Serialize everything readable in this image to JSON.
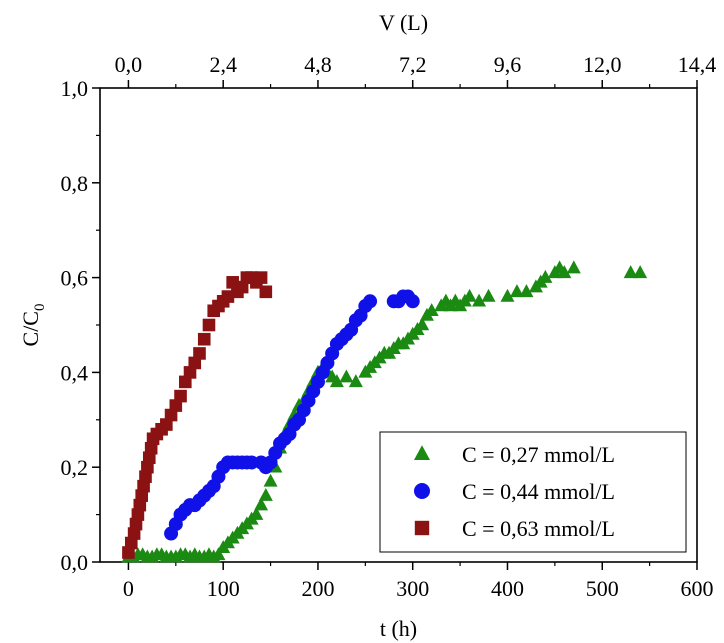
{
  "chart_data": {
    "type": "scatter",
    "xlabel": "t (h)",
    "ylabel_main": "C/C",
    "ylabel_sub": "0",
    "top_xlabel": "V (L)",
    "xlim": [
      -30,
      600
    ],
    "ylim": [
      0,
      1.0
    ],
    "x_ticks": [
      "0",
      "100",
      "200",
      "300",
      "400",
      "500",
      "600"
    ],
    "y_ticks": [
      "0,0",
      "0,2",
      "0,4",
      "0,6",
      "0,8",
      "1,0"
    ],
    "top_ticks": [
      "0,0",
      "2,4",
      "4,8",
      "7,2",
      "9,6",
      "12,0",
      "14,4"
    ],
    "legend_position": "bottom-right",
    "series": [
      {
        "name": "C = 0,27 mmol/L",
        "marker": "triangle",
        "color": "#1a8a12",
        "points": [
          [
            0,
            0.01
          ],
          [
            5,
            0.01
          ],
          [
            10,
            0.015
          ],
          [
            15,
            0.015
          ],
          [
            20,
            0.01
          ],
          [
            25,
            0.01
          ],
          [
            30,
            0.015
          ],
          [
            35,
            0.015
          ],
          [
            40,
            0.01
          ],
          [
            45,
            0.01
          ],
          [
            50,
            0.01
          ],
          [
            55,
            0.015
          ],
          [
            60,
            0.015
          ],
          [
            65,
            0.01
          ],
          [
            70,
            0.015
          ],
          [
            75,
            0.01
          ],
          [
            80,
            0.01
          ],
          [
            85,
            0.015
          ],
          [
            90,
            0.01
          ],
          [
            95,
            0.015
          ],
          [
            100,
            0.03
          ],
          [
            105,
            0.04
          ],
          [
            110,
            0.05
          ],
          [
            115,
            0.06
          ],
          [
            120,
            0.07
          ],
          [
            125,
            0.08
          ],
          [
            130,
            0.09
          ],
          [
            135,
            0.1
          ],
          [
            140,
            0.12
          ],
          [
            145,
            0.14
          ],
          [
            150,
            0.17
          ],
          [
            155,
            0.2
          ],
          [
            160,
            0.24
          ],
          [
            165,
            0.27
          ],
          [
            170,
            0.29
          ],
          [
            175,
            0.31
          ],
          [
            180,
            0.33
          ],
          [
            185,
            0.34
          ],
          [
            190,
            0.36
          ],
          [
            195,
            0.38
          ],
          [
            200,
            0.4
          ],
          [
            205,
            0.41
          ],
          [
            210,
            0.4
          ],
          [
            215,
            0.39
          ],
          [
            220,
            0.38
          ],
          [
            230,
            0.39
          ],
          [
            240,
            0.38
          ],
          [
            250,
            0.4
          ],
          [
            255,
            0.41
          ],
          [
            260,
            0.42
          ],
          [
            265,
            0.43
          ],
          [
            270,
            0.44
          ],
          [
            275,
            0.44
          ],
          [
            280,
            0.45
          ],
          [
            285,
            0.46
          ],
          [
            290,
            0.46
          ],
          [
            295,
            0.47
          ],
          [
            300,
            0.48
          ],
          [
            305,
            0.49
          ],
          [
            310,
            0.5
          ],
          [
            315,
            0.52
          ],
          [
            320,
            0.53
          ],
          [
            330,
            0.54
          ],
          [
            335,
            0.55
          ],
          [
            340,
            0.54
          ],
          [
            345,
            0.55
          ],
          [
            350,
            0.54
          ],
          [
            355,
            0.55
          ],
          [
            360,
            0.56
          ],
          [
            370,
            0.55
          ],
          [
            380,
            0.56
          ],
          [
            400,
            0.56
          ],
          [
            410,
            0.57
          ],
          [
            420,
            0.57
          ],
          [
            430,
            0.58
          ],
          [
            435,
            0.59
          ],
          [
            440,
            0.6
          ],
          [
            450,
            0.61
          ],
          [
            455,
            0.62
          ],
          [
            460,
            0.61
          ],
          [
            470,
            0.62
          ],
          [
            530,
            0.61
          ],
          [
            540,
            0.61
          ]
        ]
      },
      {
        "name": "C = 0,44 mmol/L",
        "marker": "circle",
        "color": "#1010e8",
        "points": [
          [
            45,
            0.06
          ],
          [
            50,
            0.08
          ],
          [
            55,
            0.1
          ],
          [
            60,
            0.11
          ],
          [
            65,
            0.12
          ],
          [
            70,
            0.12
          ],
          [
            75,
            0.13
          ],
          [
            80,
            0.14
          ],
          [
            85,
            0.15
          ],
          [
            90,
            0.16
          ],
          [
            95,
            0.18
          ],
          [
            100,
            0.2
          ],
          [
            105,
            0.21
          ],
          [
            110,
            0.21
          ],
          [
            115,
            0.21
          ],
          [
            120,
            0.21
          ],
          [
            125,
            0.21
          ],
          [
            130,
            0.21
          ],
          [
            140,
            0.21
          ],
          [
            145,
            0.2
          ],
          [
            150,
            0.21
          ],
          [
            155,
            0.23
          ],
          [
            160,
            0.25
          ],
          [
            165,
            0.26
          ],
          [
            170,
            0.27
          ],
          [
            175,
            0.29
          ],
          [
            180,
            0.3
          ],
          [
            185,
            0.32
          ],
          [
            190,
            0.34
          ],
          [
            195,
            0.36
          ],
          [
            200,
            0.38
          ],
          [
            205,
            0.4
          ],
          [
            210,
            0.42
          ],
          [
            215,
            0.44
          ],
          [
            220,
            0.46
          ],
          [
            225,
            0.47
          ],
          [
            230,
            0.48
          ],
          [
            235,
            0.49
          ],
          [
            240,
            0.51
          ],
          [
            245,
            0.52
          ],
          [
            250,
            0.54
          ],
          [
            255,
            0.55
          ],
          [
            280,
            0.55
          ],
          [
            285,
            0.55
          ],
          [
            290,
            0.56
          ],
          [
            295,
            0.56
          ],
          [
            300,
            0.55
          ]
        ]
      },
      {
        "name": "C = 0,63 mmol/L",
        "marker": "square",
        "color": "#8a1212",
        "points": [
          [
            0,
            0.02
          ],
          [
            3,
            0.04
          ],
          [
            6,
            0.06
          ],
          [
            8,
            0.08
          ],
          [
            10,
            0.1
          ],
          [
            12,
            0.12
          ],
          [
            14,
            0.14
          ],
          [
            16,
            0.16
          ],
          [
            18,
            0.18
          ],
          [
            20,
            0.2
          ],
          [
            22,
            0.22
          ],
          [
            24,
            0.24
          ],
          [
            26,
            0.26
          ],
          [
            30,
            0.27
          ],
          [
            35,
            0.28
          ],
          [
            40,
            0.29
          ],
          [
            45,
            0.31
          ],
          [
            50,
            0.33
          ],
          [
            55,
            0.35
          ],
          [
            60,
            0.38
          ],
          [
            65,
            0.4
          ],
          [
            70,
            0.42
          ],
          [
            75,
            0.44
          ],
          [
            80,
            0.47
          ],
          [
            85,
            0.5
          ],
          [
            90,
            0.53
          ],
          [
            95,
            0.54
          ],
          [
            100,
            0.55
          ],
          [
            105,
            0.56
          ],
          [
            110,
            0.59
          ],
          [
            115,
            0.57
          ],
          [
            120,
            0.58
          ],
          [
            125,
            0.6
          ],
          [
            130,
            0.6
          ],
          [
            135,
            0.59
          ],
          [
            140,
            0.6
          ],
          [
            145,
            0.57
          ]
        ]
      }
    ]
  }
}
